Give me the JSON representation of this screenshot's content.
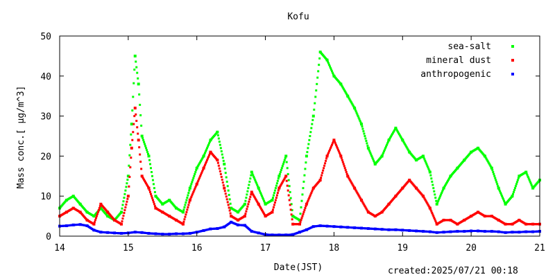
{
  "chart_data": {
    "type": "scatter",
    "title": "Kofu",
    "xlabel": "Date(JST)",
    "ylabel": "Mass conc.[ µg/m^3]",
    "ylim": [
      0,
      50
    ],
    "xlim": [
      14,
      21
    ],
    "x_ticks": [
      "14",
      "15",
      "16",
      "17",
      "18",
      "19",
      "20",
      "21"
    ],
    "y_ticks": [
      "0",
      "10",
      "20",
      "30",
      "40",
      "50"
    ],
    "grid": false,
    "legend_position": "top-right",
    "series": [
      {
        "name": "sea-salt",
        "color": "#00ff00",
        "points": [
          [
            14.0,
            7
          ],
          [
            14.1,
            9
          ],
          [
            14.2,
            10
          ],
          [
            14.3,
            8
          ],
          [
            14.4,
            6
          ],
          [
            14.5,
            5
          ],
          [
            14.6,
            7
          ],
          [
            14.7,
            5
          ],
          [
            14.8,
            4
          ],
          [
            14.9,
            6
          ],
          [
            15.0,
            15
          ],
          [
            15.05,
            28
          ],
          [
            15.1,
            45
          ],
          [
            15.15,
            38
          ],
          [
            15.2,
            25
          ],
          [
            15.3,
            20
          ],
          [
            15.4,
            10
          ],
          [
            15.5,
            8
          ],
          [
            15.6,
            9
          ],
          [
            15.7,
            7
          ],
          [
            15.8,
            6
          ],
          [
            15.9,
            12
          ],
          [
            16.0,
            17
          ],
          [
            16.1,
            20
          ],
          [
            16.2,
            24
          ],
          [
            16.3,
            26
          ],
          [
            16.4,
            18
          ],
          [
            16.5,
            7
          ],
          [
            16.6,
            6
          ],
          [
            16.7,
            8
          ],
          [
            16.8,
            16
          ],
          [
            16.9,
            12
          ],
          [
            17.0,
            8
          ],
          [
            17.1,
            9
          ],
          [
            17.2,
            15
          ],
          [
            17.3,
            20
          ],
          [
            17.4,
            5
          ],
          [
            17.5,
            4
          ],
          [
            17.6,
            20
          ],
          [
            17.7,
            30
          ],
          [
            17.8,
            46
          ],
          [
            17.9,
            44
          ],
          [
            18.0,
            40
          ],
          [
            18.1,
            38
          ],
          [
            18.2,
            35
          ],
          [
            18.3,
            32
          ],
          [
            18.4,
            28
          ],
          [
            18.5,
            22
          ],
          [
            18.6,
            18
          ],
          [
            18.7,
            20
          ],
          [
            18.8,
            24
          ],
          [
            18.9,
            27
          ],
          [
            19.0,
            24
          ],
          [
            19.1,
            21
          ],
          [
            19.2,
            19
          ],
          [
            19.3,
            20
          ],
          [
            19.4,
            16
          ],
          [
            19.5,
            8
          ],
          [
            19.6,
            12
          ],
          [
            19.7,
            15
          ],
          [
            19.8,
            17
          ],
          [
            19.9,
            19
          ],
          [
            20.0,
            21
          ],
          [
            20.1,
            22
          ],
          [
            20.2,
            20
          ],
          [
            20.3,
            17
          ],
          [
            20.4,
            12
          ],
          [
            20.5,
            8
          ],
          [
            20.6,
            10
          ],
          [
            20.7,
            15
          ],
          [
            20.8,
            16
          ],
          [
            20.9,
            12
          ],
          [
            21.0,
            14
          ]
        ]
      },
      {
        "name": "mineral dust",
        "color": "#ff0000",
        "points": [
          [
            14.0,
            5
          ],
          [
            14.1,
            6
          ],
          [
            14.2,
            7
          ],
          [
            14.3,
            6
          ],
          [
            14.4,
            4
          ],
          [
            14.5,
            3
          ],
          [
            14.6,
            8
          ],
          [
            14.7,
            6
          ],
          [
            14.8,
            4
          ],
          [
            14.9,
            3
          ],
          [
            15.0,
            10
          ],
          [
            15.05,
            22
          ],
          [
            15.1,
            32
          ],
          [
            15.15,
            24
          ],
          [
            15.2,
            15
          ],
          [
            15.3,
            12
          ],
          [
            15.4,
            7
          ],
          [
            15.5,
            6
          ],
          [
            15.6,
            5
          ],
          [
            15.7,
            4
          ],
          [
            15.8,
            3
          ],
          [
            15.9,
            9
          ],
          [
            16.0,
            13
          ],
          [
            16.1,
            17
          ],
          [
            16.2,
            21
          ],
          [
            16.3,
            19
          ],
          [
            16.4,
            12
          ],
          [
            16.5,
            5
          ],
          [
            16.6,
            4
          ],
          [
            16.7,
            5
          ],
          [
            16.8,
            11
          ],
          [
            16.9,
            8
          ],
          [
            17.0,
            5
          ],
          [
            17.1,
            6
          ],
          [
            17.2,
            12
          ],
          [
            17.3,
            15
          ],
          [
            17.4,
            3
          ],
          [
            17.5,
            3
          ],
          [
            17.6,
            8
          ],
          [
            17.7,
            12
          ],
          [
            17.8,
            14
          ],
          [
            17.9,
            20
          ],
          [
            18.0,
            24
          ],
          [
            18.1,
            20
          ],
          [
            18.2,
            15
          ],
          [
            18.3,
            12
          ],
          [
            18.4,
            9
          ],
          [
            18.5,
            6
          ],
          [
            18.6,
            5
          ],
          [
            18.7,
            6
          ],
          [
            18.8,
            8
          ],
          [
            18.9,
            10
          ],
          [
            19.0,
            12
          ],
          [
            19.1,
            14
          ],
          [
            19.2,
            12
          ],
          [
            19.3,
            10
          ],
          [
            19.4,
            7
          ],
          [
            19.5,
            3
          ],
          [
            19.6,
            4
          ],
          [
            19.7,
            4
          ],
          [
            19.8,
            3
          ],
          [
            19.9,
            4
          ],
          [
            20.0,
            5
          ],
          [
            20.1,
            6
          ],
          [
            20.2,
            5
          ],
          [
            20.3,
            5
          ],
          [
            20.4,
            4
          ],
          [
            20.5,
            3
          ],
          [
            20.6,
            3
          ],
          [
            20.7,
            4
          ],
          [
            20.8,
            3
          ],
          [
            20.9,
            3
          ],
          [
            21.0,
            3
          ]
        ]
      },
      {
        "name": "anthropogenic",
        "color": "#0000ff",
        "points": [
          [
            14.0,
            2.5
          ],
          [
            14.1,
            2.6
          ],
          [
            14.2,
            2.8
          ],
          [
            14.3,
            2.9
          ],
          [
            14.4,
            2.6
          ],
          [
            14.5,
            1.5
          ],
          [
            14.6,
            1.0
          ],
          [
            14.7,
            0.9
          ],
          [
            14.8,
            0.8
          ],
          [
            14.9,
            0.7
          ],
          [
            15.0,
            0.8
          ],
          [
            15.1,
            1.0
          ],
          [
            15.2,
            0.9
          ],
          [
            15.3,
            0.7
          ],
          [
            15.4,
            0.6
          ],
          [
            15.5,
            0.5
          ],
          [
            15.6,
            0.5
          ],
          [
            15.7,
            0.6
          ],
          [
            15.8,
            0.6
          ],
          [
            15.9,
            0.7
          ],
          [
            16.0,
            1.0
          ],
          [
            16.1,
            1.4
          ],
          [
            16.2,
            1.8
          ],
          [
            16.3,
            1.9
          ],
          [
            16.4,
            2.3
          ],
          [
            16.5,
            3.5
          ],
          [
            16.6,
            2.8
          ],
          [
            16.7,
            2.7
          ],
          [
            16.8,
            1.2
          ],
          [
            16.9,
            0.8
          ],
          [
            17.0,
            0.4
          ],
          [
            17.1,
            0.3
          ],
          [
            17.2,
            0.3
          ],
          [
            17.3,
            0.3
          ],
          [
            17.4,
            0.4
          ],
          [
            17.5,
            1.0
          ],
          [
            17.6,
            1.6
          ],
          [
            17.7,
            2.4
          ],
          [
            17.8,
            2.6
          ],
          [
            17.9,
            2.5
          ],
          [
            18.0,
            2.4
          ],
          [
            18.1,
            2.3
          ],
          [
            18.2,
            2.2
          ],
          [
            18.3,
            2.1
          ],
          [
            18.4,
            2.0
          ],
          [
            18.5,
            1.9
          ],
          [
            18.6,
            1.8
          ],
          [
            18.7,
            1.7
          ],
          [
            18.8,
            1.6
          ],
          [
            18.9,
            1.6
          ],
          [
            19.0,
            1.5
          ],
          [
            19.1,
            1.4
          ],
          [
            19.2,
            1.3
          ],
          [
            19.3,
            1.2
          ],
          [
            19.4,
            1.1
          ],
          [
            19.5,
            0.9
          ],
          [
            19.6,
            1.0
          ],
          [
            19.7,
            1.1
          ],
          [
            19.8,
            1.2
          ],
          [
            19.9,
            1.2
          ],
          [
            20.0,
            1.3
          ],
          [
            20.1,
            1.3
          ],
          [
            20.2,
            1.2
          ],
          [
            20.3,
            1.2
          ],
          [
            20.4,
            1.1
          ],
          [
            20.5,
            0.9
          ],
          [
            20.6,
            1.0
          ],
          [
            20.7,
            1.0
          ],
          [
            20.8,
            1.1
          ],
          [
            20.9,
            1.1
          ],
          [
            21.0,
            1.2
          ]
        ]
      }
    ]
  },
  "footer": {
    "created": "created:2025/07/21 00:18"
  }
}
